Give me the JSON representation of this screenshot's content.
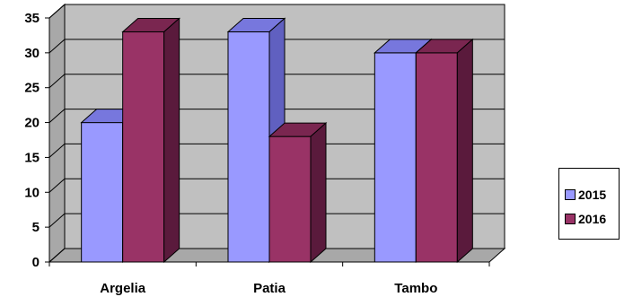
{
  "chart_data": {
    "type": "bar",
    "title": "",
    "xlabel": "",
    "ylabel": "",
    "categories": [
      "Argelia",
      "Patia",
      "Tambo"
    ],
    "series": [
      {
        "name": "2015",
        "values": [
          20,
          33,
          30
        ],
        "color": "#9999ff",
        "side_color": "#6060c0",
        "top_color": "#7777dd"
      },
      {
        "name": "2016",
        "values": [
          33,
          18,
          30
        ],
        "color": "#993366",
        "side_color": "#5a1a3c",
        "top_color": "#7a2650"
      }
    ],
    "ylim": [
      0,
      35
    ],
    "yticks": [
      "0",
      "5",
      "10",
      "15",
      "20",
      "25",
      "30",
      "35"
    ],
    "grid": true,
    "three_d": true,
    "legend_position": "right",
    "wall_color": "#c0c0c0"
  }
}
